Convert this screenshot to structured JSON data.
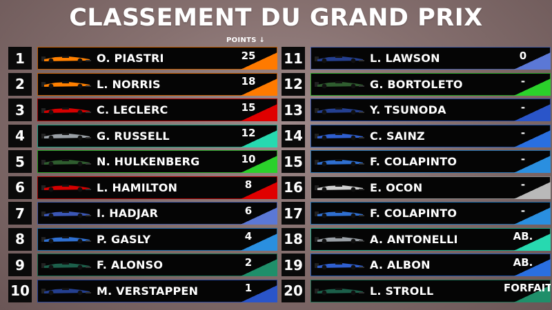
{
  "title": "CLASSEMENT DU GRAND PRIX",
  "points_header": "POINTS ↓",
  "left": [
    {
      "pos": "1",
      "driver": "O. PIASTRI",
      "points": "25",
      "team_color": "#ff7a00",
      "car_color": "#ff8000",
      "car": "papaya-car-icon"
    },
    {
      "pos": "2",
      "driver": "L. NORRIS",
      "points": "18",
      "team_color": "#ff7a00",
      "car_color": "#ff8000",
      "car": "papaya-car-icon"
    },
    {
      "pos": "3",
      "driver": "C. LECLERC",
      "points": "15",
      "team_color": "#e00000",
      "car_color": "#d40000",
      "car": "red-car-icon"
    },
    {
      "pos": "4",
      "driver": "G. RUSSELL",
      "points": "12",
      "team_color": "#27d9b0",
      "car_color": "#9aa0a6",
      "car": "silver-car-icon"
    },
    {
      "pos": "5",
      "driver": "N. HULKENBERG",
      "points": "10",
      "team_color": "#2bd12b",
      "car_color": "#2f5d2f",
      "car": "green-car-icon"
    },
    {
      "pos": "6",
      "driver": "L. HAMILTON",
      "points": "8",
      "team_color": "#e00000",
      "car_color": "#d40000",
      "car": "red-car-icon"
    },
    {
      "pos": "7",
      "driver": "I. HADJAR",
      "points": "6",
      "team_color": "#5b78d6",
      "car_color": "#3b57b5",
      "car": "blue-car-icon"
    },
    {
      "pos": "8",
      "driver": "P. GASLY",
      "points": "4",
      "team_color": "#2a8fe0",
      "car_color": "#2f6fd0",
      "car": "blue-pink-car-icon"
    },
    {
      "pos": "9",
      "driver": "F. ALONSO",
      "points": "2",
      "team_color": "#1f8f6a",
      "car_color": "#1c5f4a",
      "car": "green-car-icon"
    },
    {
      "pos": "10",
      "driver": "M. VERSTAPPEN",
      "points": "1",
      "team_color": "#2a55c9",
      "car_color": "#243f8f",
      "car": "navy-car-icon"
    }
  ],
  "right": [
    {
      "pos": "11",
      "driver": "L. LAWSON",
      "points": "0",
      "team_color": "#5b78d6",
      "car_color": "#243f8f",
      "car": "navy-car-icon"
    },
    {
      "pos": "12",
      "driver": "G. BORTOLETO",
      "points": "-",
      "team_color": "#2bd12b",
      "car_color": "#2f5d2f",
      "car": "green-car-icon"
    },
    {
      "pos": "13",
      "driver": "Y. TSUNODA",
      "points": "-",
      "team_color": "#2a55c9",
      "car_color": "#243f8f",
      "car": "navy-car-icon"
    },
    {
      "pos": "14",
      "driver": "C. SAINZ",
      "points": "-",
      "team_color": "#2a6fe0",
      "car_color": "#2f5fd0",
      "car": "blue-car-icon"
    },
    {
      "pos": "15",
      "driver": "F. COLAPINTO",
      "points": "-",
      "team_color": "#2a8fe0",
      "car_color": "#2f6fd0",
      "car": "blue-pink-car-icon"
    },
    {
      "pos": "16",
      "driver": "E. OCON",
      "points": "-",
      "team_color": "#b9b9b9",
      "car_color": "#d0d0d0",
      "car": "white-car-icon"
    },
    {
      "pos": "17",
      "driver": "F. COLAPINTO",
      "points": "-",
      "team_color": "#2a8fe0",
      "car_color": "#2f6fd0",
      "car": "blue-pink-car-icon"
    },
    {
      "pos": "18",
      "driver": "A. ANTONELLI",
      "points": "AB.",
      "team_color": "#27d9b0",
      "car_color": "#9aa0a6",
      "car": "silver-car-icon"
    },
    {
      "pos": "19",
      "driver": "A. ALBON",
      "points": "AB.",
      "team_color": "#2a6fe0",
      "car_color": "#2f5fd0",
      "car": "blue-car-icon"
    },
    {
      "pos": "20",
      "driver": "L. STROLL",
      "points": "FORFAIT",
      "team_color": "#1f8f6a",
      "car_color": "#1c5f4a",
      "car": "green-car-icon"
    }
  ]
}
